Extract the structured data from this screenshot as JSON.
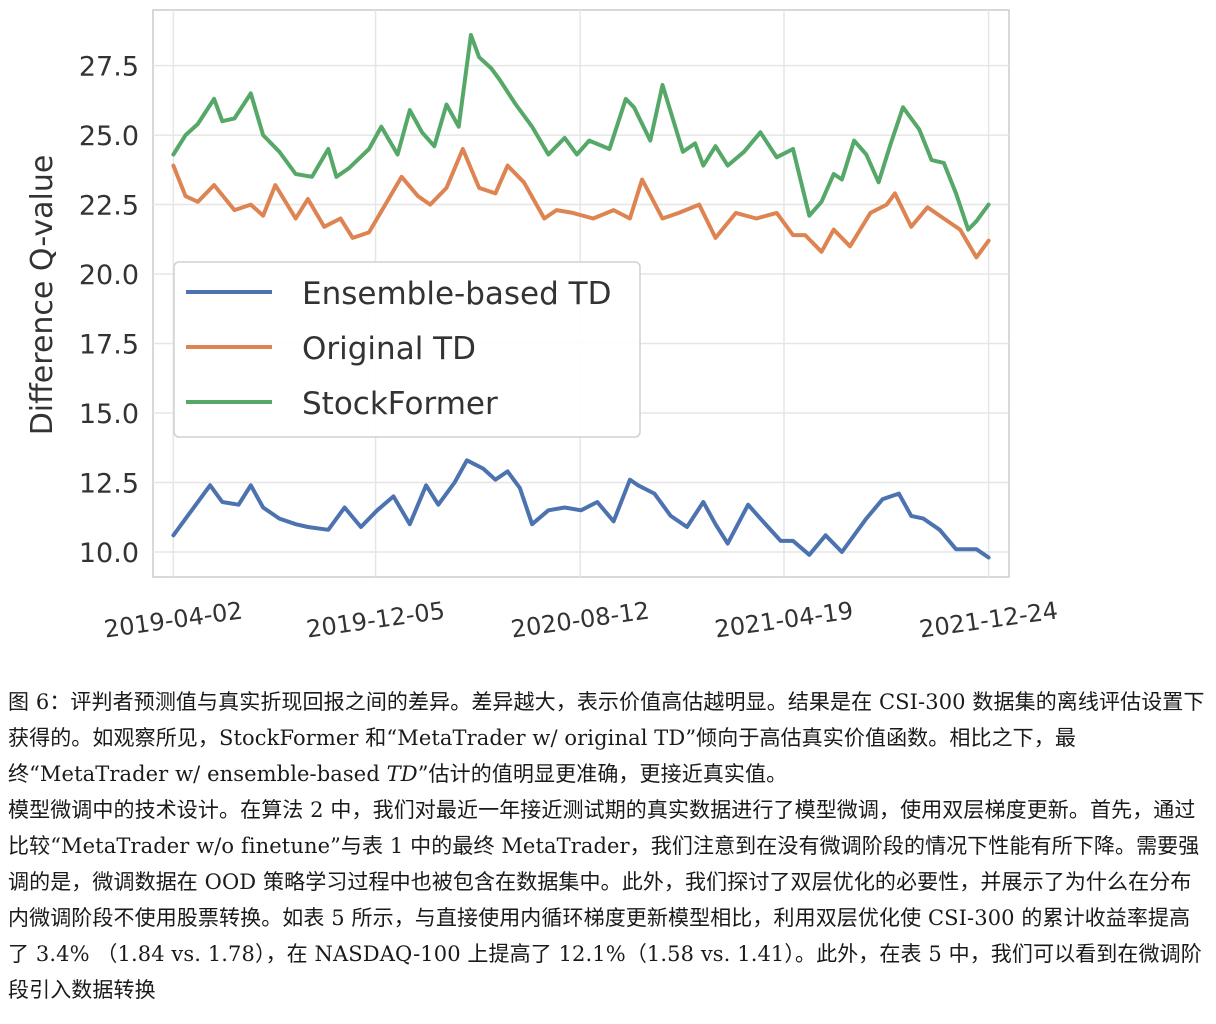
{
  "chart_data": {
    "type": "line",
    "title": "",
    "xlabel": "",
    "ylabel": "Difference Q-value",
    "ylim": [
      9.1,
      29.5
    ],
    "xlim": [
      -25,
      1025
    ],
    "yticks": [
      "10.0",
      "12.5",
      "15.0",
      "17.5",
      "20.0",
      "22.5",
      "25.0",
      "27.5"
    ],
    "ytick_values": [
      10.0,
      12.5,
      15.0,
      17.5,
      20.0,
      22.5,
      25.0,
      27.5
    ],
    "xticks": [
      "2019-04-02",
      "2019-12-05",
      "2020-08-12",
      "2021-04-19",
      "2021-12-24"
    ],
    "xtick_values": [
      0,
      248,
      499,
      749,
      1000
    ],
    "grid": true,
    "legend_position": "center-left",
    "series": [
      {
        "name": "Ensemble-based TD",
        "color": "#4c72b0",
        "x": [
          0,
          20,
          45,
          60,
          80,
          95,
          110,
          130,
          150,
          165,
          190,
          210,
          230,
          250,
          270,
          290,
          310,
          325,
          345,
          360,
          380,
          395,
          410,
          425,
          440,
          460,
          480,
          500,
          520,
          540,
          560,
          570,
          590,
          610,
          630,
          650,
          665,
          680,
          705,
          720,
          745,
          760,
          780,
          800,
          820,
          850,
          870,
          890,
          905,
          920,
          940,
          960,
          985,
          1000
        ],
        "values": [
          10.6,
          11.4,
          12.4,
          11.8,
          11.7,
          12.4,
          11.6,
          11.2,
          11.0,
          10.9,
          10.8,
          11.6,
          10.9,
          11.5,
          12.0,
          11.0,
          12.4,
          11.7,
          12.5,
          13.3,
          13.0,
          12.6,
          12.9,
          12.3,
          11.0,
          11.5,
          11.6,
          11.5,
          11.8,
          11.1,
          12.6,
          12.4,
          12.1,
          11.3,
          10.9,
          11.8,
          11.0,
          10.3,
          11.7,
          11.2,
          10.4,
          10.4,
          9.9,
          10.6,
          10.0,
          11.2,
          11.9,
          12.1,
          11.3,
          11.2,
          10.8,
          10.1,
          10.1,
          9.8
        ]
      },
      {
        "name": "Original TD",
        "color": "#dd8452",
        "x": [
          0,
          15,
          30,
          50,
          75,
          95,
          110,
          125,
          150,
          165,
          185,
          205,
          220,
          240,
          260,
          280,
          300,
          315,
          335,
          355,
          375,
          395,
          410,
          430,
          455,
          470,
          490,
          515,
          540,
          560,
          575,
          600,
          620,
          645,
          665,
          690,
          715,
          740,
          760,
          775,
          795,
          810,
          830,
          855,
          875,
          885,
          905,
          925,
          945,
          965,
          985,
          1000
        ],
        "values": [
          23.9,
          22.8,
          22.6,
          23.2,
          22.3,
          22.5,
          22.1,
          23.2,
          22.0,
          22.7,
          21.7,
          22.0,
          21.3,
          21.5,
          22.5,
          23.5,
          22.8,
          22.5,
          23.1,
          24.5,
          23.1,
          22.9,
          23.9,
          23.3,
          22.0,
          22.3,
          22.2,
          22.0,
          22.3,
          22.0,
          23.4,
          22.0,
          22.2,
          22.5,
          21.3,
          22.2,
          22.0,
          22.2,
          21.4,
          21.4,
          20.8,
          21.6,
          21.0,
          22.2,
          22.5,
          22.9,
          21.7,
          22.4,
          22.0,
          21.6,
          20.6,
          21.2
        ]
      },
      {
        "name": "StockFormer",
        "color": "#55a868",
        "x": [
          0,
          15,
          30,
          50,
          60,
          75,
          95,
          110,
          130,
          150,
          170,
          190,
          200,
          215,
          240,
          255,
          275,
          290,
          305,
          320,
          335,
          350,
          365,
          375,
          390,
          400,
          420,
          440,
          460,
          480,
          495,
          510,
          535,
          555,
          565,
          585,
          600,
          625,
          640,
          650,
          665,
          680,
          700,
          720,
          740,
          760,
          780,
          795,
          810,
          820,
          835,
          850,
          865,
          880,
          895,
          915,
          930,
          945,
          960,
          975,
          985,
          1000
        ],
        "values": [
          24.3,
          25.0,
          25.4,
          26.3,
          25.5,
          25.6,
          26.5,
          25.0,
          24.4,
          23.6,
          23.5,
          24.5,
          23.5,
          23.8,
          24.5,
          25.3,
          24.3,
          25.9,
          25.1,
          24.6,
          26.1,
          25.3,
          28.6,
          27.8,
          27.4,
          27.0,
          26.1,
          25.3,
          24.3,
          24.9,
          24.3,
          24.8,
          24.5,
          26.3,
          26.0,
          24.8,
          26.8,
          24.4,
          24.7,
          23.9,
          24.6,
          23.9,
          24.4,
          25.1,
          24.2,
          24.5,
          22.1,
          22.6,
          23.6,
          23.4,
          24.8,
          24.3,
          23.3,
          24.7,
          26.0,
          25.2,
          24.1,
          24.0,
          22.9,
          21.6,
          21.9,
          22.5
        ]
      }
    ]
  },
  "caption": "图 6：评判者预测值与真实折现回报之间的差异。差异越大，表示价值高估越明显。结果是在 CSI-300 数据集的离线评估设置下获得的。如观察所见，StockFormer 和“MetaTrader w/ original TD”倾向于高估真实价值函数。相比之下，最终“MetaTrader w/ ensemble-based ",
  "caption_math": "TD",
  "caption_tail": "”估计的值明显更准确，更接近真实值。",
  "paragraph": "模型微调中的技术设计。在算法 2 中，我们对最近一年接近测试期的真实数据进行了模型微调，使用双层梯度更新。首先，通过比较“MetaTrader w/o finetune”与表 1 中的最终 MetaTrader，我们注意到在没有微调阶段的情况下性能有所下降。需要强调的是，微调数据在 OOD 策略学习过程中也被包含在数据集中。此外，我们探讨了双层优化的必要性，并展示了为什么在分布内微调阶段不使用股票转换。如表 5 所示，与直接使用内循环梯度更新模型相比，利用双层优化使 CSI-300 的累计收益率提高了 3.4% （1.84 vs. 1.78），在 NASDAQ-100 上提高了 12.1%（1.58 vs. 1.41）。此外，在表 5 中，我们可以看到在微调阶段引入数据转换"
}
